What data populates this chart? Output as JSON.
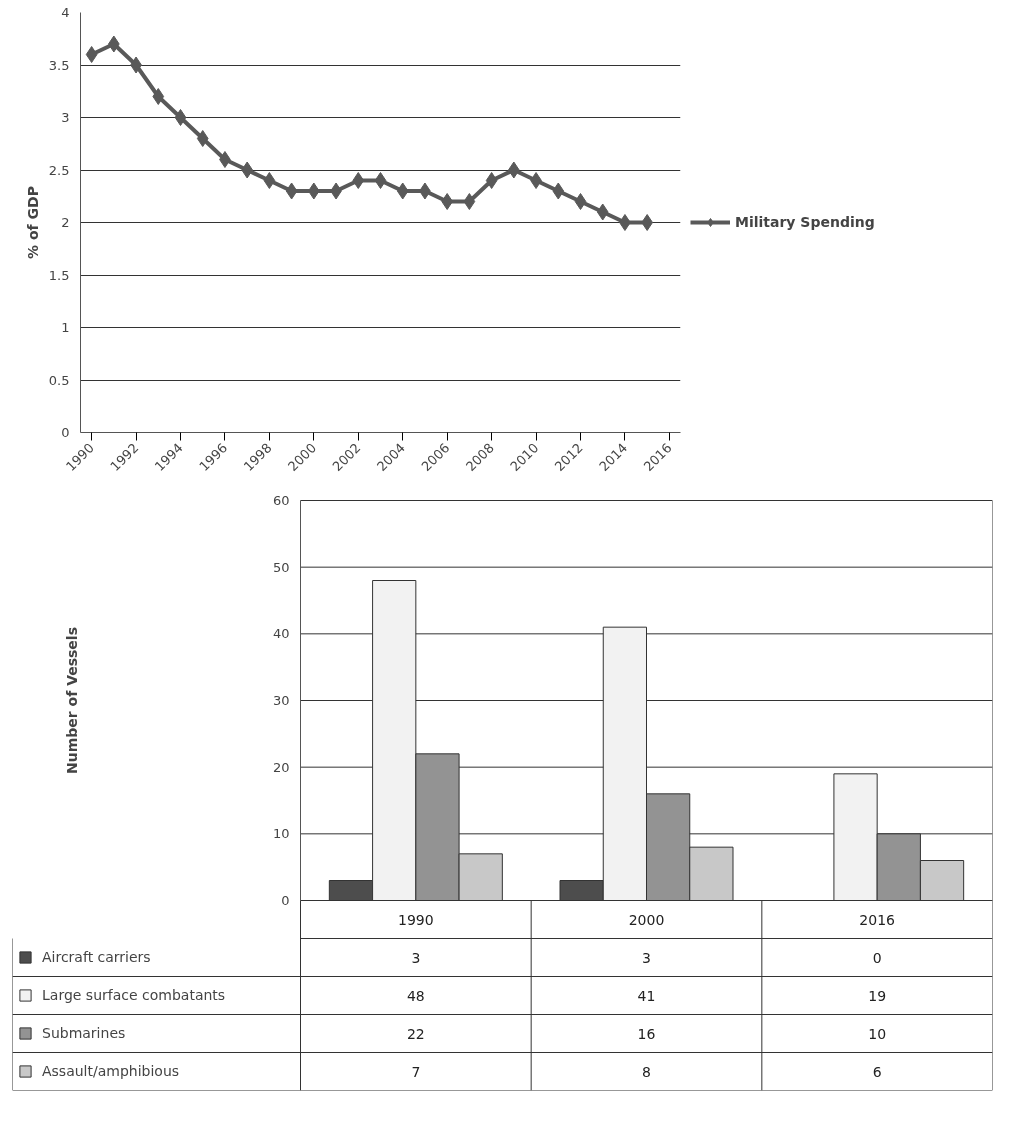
{
  "chart_data": [
    {
      "type": "line",
      "ylabel": "% of GDP",
      "x": [
        1990,
        1991,
        1992,
        1993,
        1994,
        1995,
        1996,
        1997,
        1998,
        1999,
        2000,
        2001,
        2002,
        2003,
        2004,
        2005,
        2006,
        2007,
        2008,
        2009,
        2010,
        2011,
        2012,
        2013,
        2014,
        2015
      ],
      "series": [
        {
          "name": "Military Spending",
          "color": "#595959",
          "values": [
            3.6,
            3.7,
            3.5,
            3.2,
            3.0,
            2.8,
            2.6,
            2.5,
            2.4,
            2.3,
            2.3,
            2.3,
            2.4,
            2.4,
            2.3,
            2.3,
            2.2,
            2.2,
            2.4,
            2.5,
            2.4,
            2.3,
            2.2,
            2.1,
            2.0,
            2.0
          ]
        }
      ],
      "xlim": [
        1989.5,
        2016.5
      ],
      "xticks": [
        1990,
        1992,
        1994,
        1996,
        1998,
        2000,
        2002,
        2004,
        2006,
        2008,
        2010,
        2012,
        2014,
        2016
      ],
      "ylim": [
        0,
        4
      ],
      "yticks": [
        0,
        0.5,
        1,
        1.5,
        2,
        2.5,
        3,
        3.5,
        4
      ],
      "grid": "y",
      "legend": "right",
      "marker": "diamond",
      "line_style": "solid"
    },
    {
      "type": "bar",
      "ylabel": "Number of Vessels",
      "categories": [
        "1990",
        "2000",
        "2016"
      ],
      "series": [
        {
          "name": "Aircraft carriers",
          "color": "#4d4d4d",
          "values": [
            3,
            3,
            0
          ]
        },
        {
          "name": "Large surface combatants",
          "color": "#f2f2f2",
          "values": [
            48,
            41,
            19
          ]
        },
        {
          "name": "Submarines",
          "color": "#939393",
          "values": [
            22,
            16,
            10
          ]
        },
        {
          "name": "Assault/amphibious",
          "color": "#c8c8c8",
          "values": [
            7,
            8,
            6
          ]
        }
      ],
      "ylim": [
        0,
        60
      ],
      "yticks": [
        0,
        10,
        20,
        30,
        40,
        50,
        60
      ],
      "grid": "y",
      "legend": "bottom",
      "data_labels": true
    }
  ]
}
